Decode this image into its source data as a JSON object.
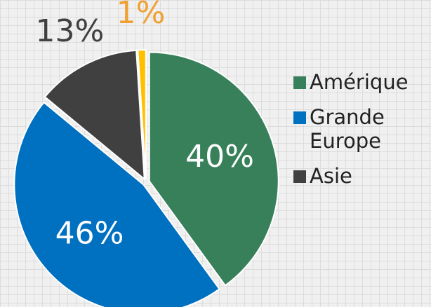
{
  "chart_data": {
    "type": "pie",
    "categories": [
      "Amérique",
      "Grande Europe",
      "Asie",
      null
    ],
    "values": [
      40,
      46,
      13,
      1
    ],
    "value_labels": [
      "40%",
      "46%",
      "13%",
      "1%"
    ],
    "colors": [
      "#37805a",
      "#0070c0",
      "#404040",
      "#ffc000"
    ],
    "legend": "right"
  }
}
